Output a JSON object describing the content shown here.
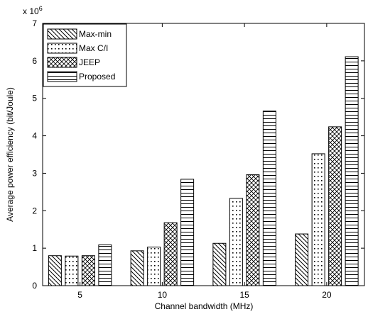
{
  "chart_data": {
    "type": "bar",
    "categories": [
      "5",
      "10",
      "15",
      "20"
    ],
    "series": [
      {
        "name": "Max-min",
        "values": [
          0.8,
          0.93,
          1.13,
          1.38
        ],
        "pattern": "diagonal"
      },
      {
        "name": "Max C/I",
        "values": [
          0.79,
          1.03,
          2.33,
          3.52
        ],
        "pattern": "dots"
      },
      {
        "name": "JEEP",
        "values": [
          0.8,
          1.68,
          2.96,
          4.24
        ],
        "pattern": "crosshatch"
      },
      {
        "name": "Proposed",
        "values": [
          1.09,
          2.84,
          4.66,
          6.11
        ],
        "pattern": "horizontal"
      }
    ],
    "xlabel": "Channel bandwidth (MHz)",
    "ylabel": "Average power efficiency (bit/Joule)",
    "y_multiplier_label": "x 10",
    "y_multiplier_exponent": "6",
    "ylim": [
      0,
      7
    ],
    "yticks": [
      "0",
      "1",
      "2",
      "3",
      "4",
      "5",
      "6",
      "7"
    ],
    "xticks": [
      "5",
      "10",
      "15",
      "20"
    ],
    "grid": false,
    "legend_position": "top-left"
  }
}
